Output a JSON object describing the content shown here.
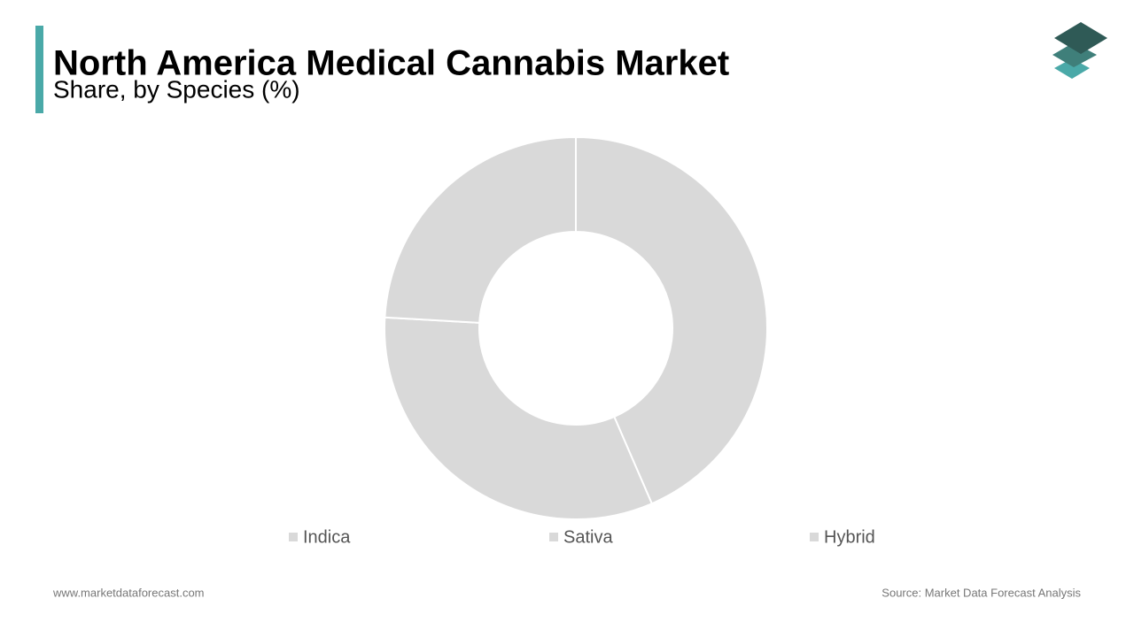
{
  "chart_data": {
    "type": "donut",
    "title": "North America Medical Cannabis Market",
    "subtitle": "Share, by Species (%)",
    "categories": [
      "Indica",
      "Sativa",
      "Hybrid"
    ],
    "values": [
      43.5,
      32.4,
      24.1
    ],
    "colors": [
      "#d9d9d9",
      "#d9d9d9",
      "#d9d9d9"
    ],
    "footer_left": "www.marketdataforecast.com",
    "footer_right": "Source: Market Data Forecast Analysis"
  }
}
